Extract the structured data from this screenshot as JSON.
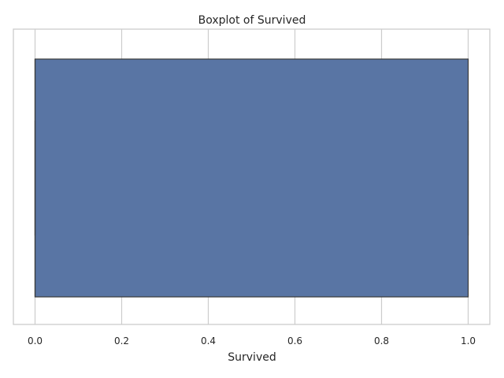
{
  "chart_data": {
    "type": "boxplot",
    "orientation": "horizontal",
    "title": "Boxplot of Survived",
    "xlabel": "Survived",
    "ylabel": "",
    "xlim": [
      -0.05,
      1.05
    ],
    "xticks": [
      0.0,
      0.2,
      0.4,
      0.6,
      0.8,
      1.0
    ],
    "xtick_labels": [
      "0.0",
      "0.2",
      "0.4",
      "0.6",
      "0.8",
      "1.0"
    ],
    "grid": true,
    "box": {
      "min": 0.0,
      "q1": 0.0,
      "median": 0.0,
      "q3": 1.0,
      "max": 1.0
    },
    "colors": {
      "box_fill": "#5975a4",
      "box_edge": "#3b3b3b",
      "grid": "#cccccc"
    }
  }
}
